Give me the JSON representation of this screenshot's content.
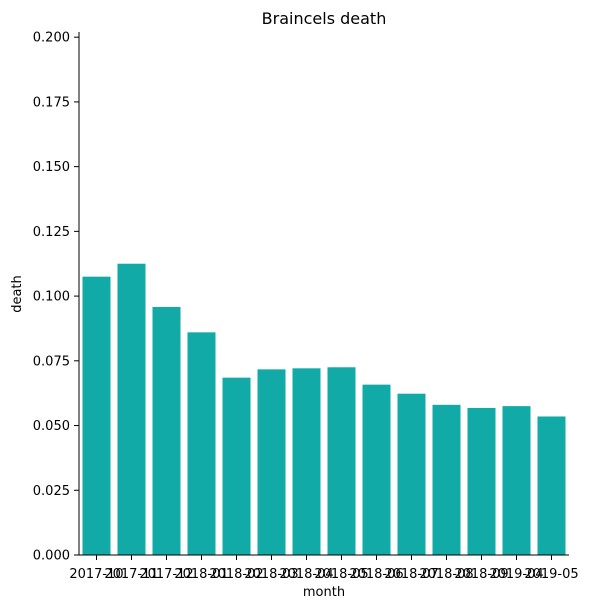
{
  "chart_data": {
    "type": "bar",
    "title": "Braincels death",
    "xlabel": "month",
    "ylabel": "death",
    "categories": [
      "2017-10",
      "2017-11",
      "2017-12",
      "2018-01",
      "2018-02",
      "2018-03",
      "2018-04",
      "2018-05",
      "2018-06",
      "2018-07",
      "2018-08",
      "2018-09",
      "2019-04",
      "2019-05"
    ],
    "values": [
      0.1075,
      0.1125,
      0.0958,
      0.086,
      0.0685,
      0.0717,
      0.0721,
      0.0725,
      0.0658,
      0.0623,
      0.058,
      0.0568,
      0.0575,
      0.0535
    ],
    "ylim": [
      0,
      0.202
    ],
    "yticks": [
      "0.000",
      "0.025",
      "0.050",
      "0.075",
      "0.100",
      "0.125",
      "0.150",
      "0.175",
      "0.200"
    ],
    "bar_color": "#12aaa6",
    "grid": false
  }
}
